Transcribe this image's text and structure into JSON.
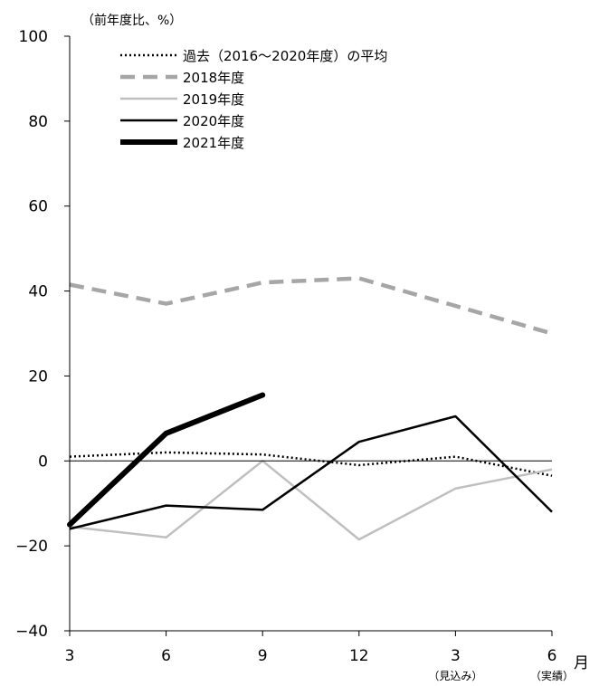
{
  "chart_data": {
    "type": "line",
    "unit_label": "（前年度比、%）",
    "x_unit_label": "月",
    "categories": [
      "3",
      "6",
      "9",
      "12",
      "3",
      "6"
    ],
    "category_notes": [
      "",
      "",
      "",
      "",
      "（見込み）",
      "（実績）"
    ],
    "ylim": [
      -40,
      100
    ],
    "yticks": [
      -40,
      -20,
      0,
      20,
      40,
      60,
      80,
      100
    ],
    "grid": false,
    "zero_line": true,
    "legend_position": "top-left",
    "series": [
      {
        "name": "過去（2016～2020年度）の平均",
        "style": "dotted",
        "color": "#000000",
        "values": [
          1,
          2,
          1.5,
          -1,
          1,
          -3.5
        ]
      },
      {
        "name": "2018年度",
        "style": "dashed",
        "color": "#a6a6a6",
        "values": [
          41.5,
          37,
          42,
          43,
          36.5,
          30
        ]
      },
      {
        "name": "2019年度",
        "style": "solid-thin",
        "color": "#bfbfbf",
        "values": [
          -15.5,
          -18,
          0,
          -18.5,
          -6.5,
          -2
        ]
      },
      {
        "name": "2020年度",
        "style": "solid",
        "color": "#000000",
        "values": [
          -16,
          -10.5,
          -11.5,
          4.5,
          10.5,
          -12
        ]
      },
      {
        "name": "2021年度",
        "style": "solid-thick",
        "color": "#000000",
        "values": [
          -15,
          6.5,
          15.5,
          null,
          null,
          null
        ]
      }
    ]
  }
}
